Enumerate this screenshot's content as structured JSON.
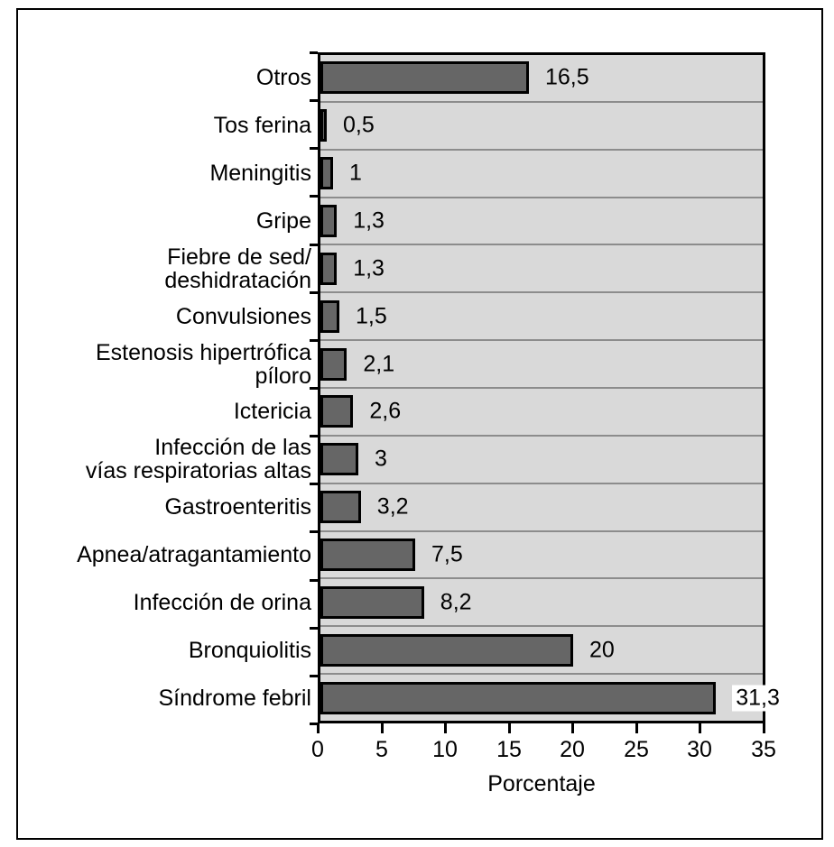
{
  "figure": {
    "xlabel": "Porcentaje"
  },
  "chart_data": {
    "type": "bar",
    "orientation": "horizontal",
    "title": "",
    "xlabel": "Porcentaje",
    "ylabel": "",
    "xlim": [
      0,
      35
    ],
    "xticks": [
      0,
      5,
      10,
      15,
      20,
      25,
      30,
      35
    ],
    "grid": "row-dividers",
    "legend": "none",
    "categories": [
      "Otros",
      "Tos ferina",
      "Meningitis",
      "Gripe",
      "Fiebre de sed/\ndeshidratación",
      "Convulsiones",
      "Estenosis hipertrófica\npíloro",
      "Ictericia",
      "Infección de las\nvías respiratorias altas",
      "Gastroenteritis",
      "Apnea/atragantamiento",
      "Infección de orina",
      "Bronquiolitis",
      "Síndrome febril"
    ],
    "values": [
      16.5,
      0.5,
      1,
      1.3,
      1.3,
      1.5,
      2.1,
      2.6,
      3,
      3.2,
      7.5,
      8.2,
      20,
      31.3
    ],
    "value_labels": [
      "16,5",
      "0,5",
      "1",
      "1,3",
      "1,3",
      "1,5",
      "2,1",
      "2,6",
      "3",
      "3,2",
      "7,5",
      "8,2",
      "20",
      "31,3"
    ],
    "colors": {
      "bar_fill": "#666666",
      "bar_border": "#000000",
      "plot_background": "#d9d9d9",
      "row_divider": "#8c8c8c",
      "axis_and_border": "#000000",
      "page_background": "#ffffff"
    }
  }
}
